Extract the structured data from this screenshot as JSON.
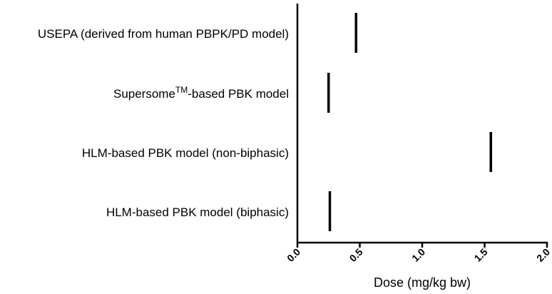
{
  "chart_data": {
    "type": "scatter",
    "marker": "vertical-line",
    "orientation": "horizontal",
    "title": "",
    "xlabel": "Dose (mg/kg bw)",
    "ylabel": "",
    "xlim": [
      0,
      2.0
    ],
    "xticks": [
      "0.0",
      "0.5",
      "1.0",
      "1.5",
      "2.0"
    ],
    "grid": false,
    "categories": [
      {
        "label": "USEPA (derived from human PBPK/PD model)",
        "value": 0.47
      },
      {
        "label_main": "Supersome",
        "label_sup": "TM",
        "label_tail": "-based PBK model",
        "value": 0.25
      },
      {
        "label": "HLM-based PBK model (non-biphasic)",
        "value": 1.55
      },
      {
        "label": "HLM-based PBK model (biphasic)",
        "value": 0.26
      }
    ]
  }
}
